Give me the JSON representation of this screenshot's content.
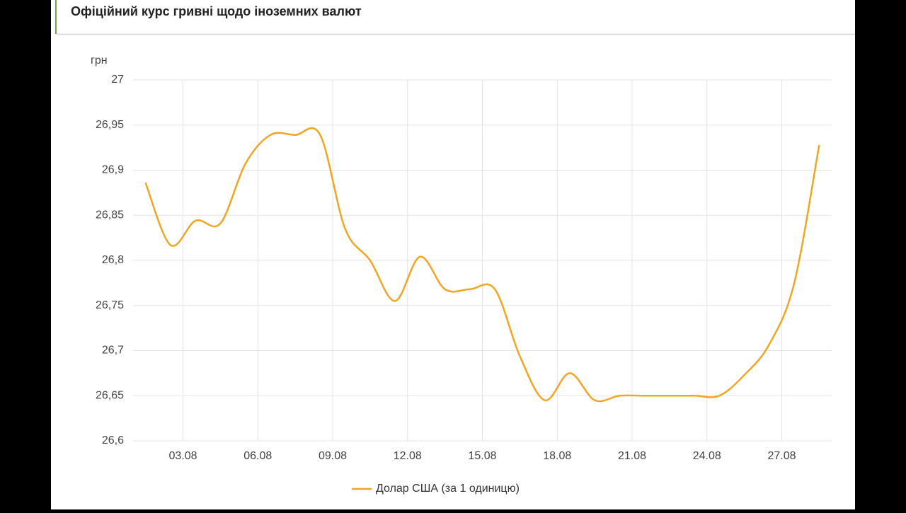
{
  "header": {
    "title": "Офіційний курс гривні щодо іноземних валют"
  },
  "chart_data": {
    "type": "line",
    "y_label": "грн",
    "categories": [
      null,
      null,
      "03.08",
      null,
      null,
      "06.08",
      null,
      null,
      "09.08",
      null,
      null,
      "12.08",
      null,
      null,
      "15.08",
      null,
      null,
      "18.08",
      null,
      null,
      "21.08",
      null,
      null,
      "24.08",
      null,
      null,
      "27.08",
      null
    ],
    "series": [
      {
        "name": "Долар США (за 1 одиницю)",
        "color": "#f0a623",
        "values": [
          26.886,
          26.817,
          26.844,
          26.841,
          26.907,
          26.939,
          26.939,
          26.939,
          26.835,
          26.8,
          26.755,
          26.804,
          26.768,
          26.768,
          26.768,
          26.694,
          26.645,
          26.675,
          26.645,
          26.65,
          26.65,
          26.65,
          26.65,
          26.65,
          26.673,
          26.707,
          26.775,
          26.928
        ]
      }
    ],
    "ylim": [
      26.6,
      27
    ],
    "yticks": [
      {
        "value": 26.6,
        "label": "26,6"
      },
      {
        "value": 26.65,
        "label": "26,65"
      },
      {
        "value": 26.7,
        "label": "26,7"
      },
      {
        "value": 26.75,
        "label": "26,75"
      },
      {
        "value": 26.8,
        "label": "26,8"
      },
      {
        "value": 26.85,
        "label": "26,85"
      },
      {
        "value": 26.9,
        "label": "26,9"
      },
      {
        "value": 26.95,
        "label": "26,95"
      },
      27
    ],
    "grid": true,
    "legend": "bottom"
  }
}
